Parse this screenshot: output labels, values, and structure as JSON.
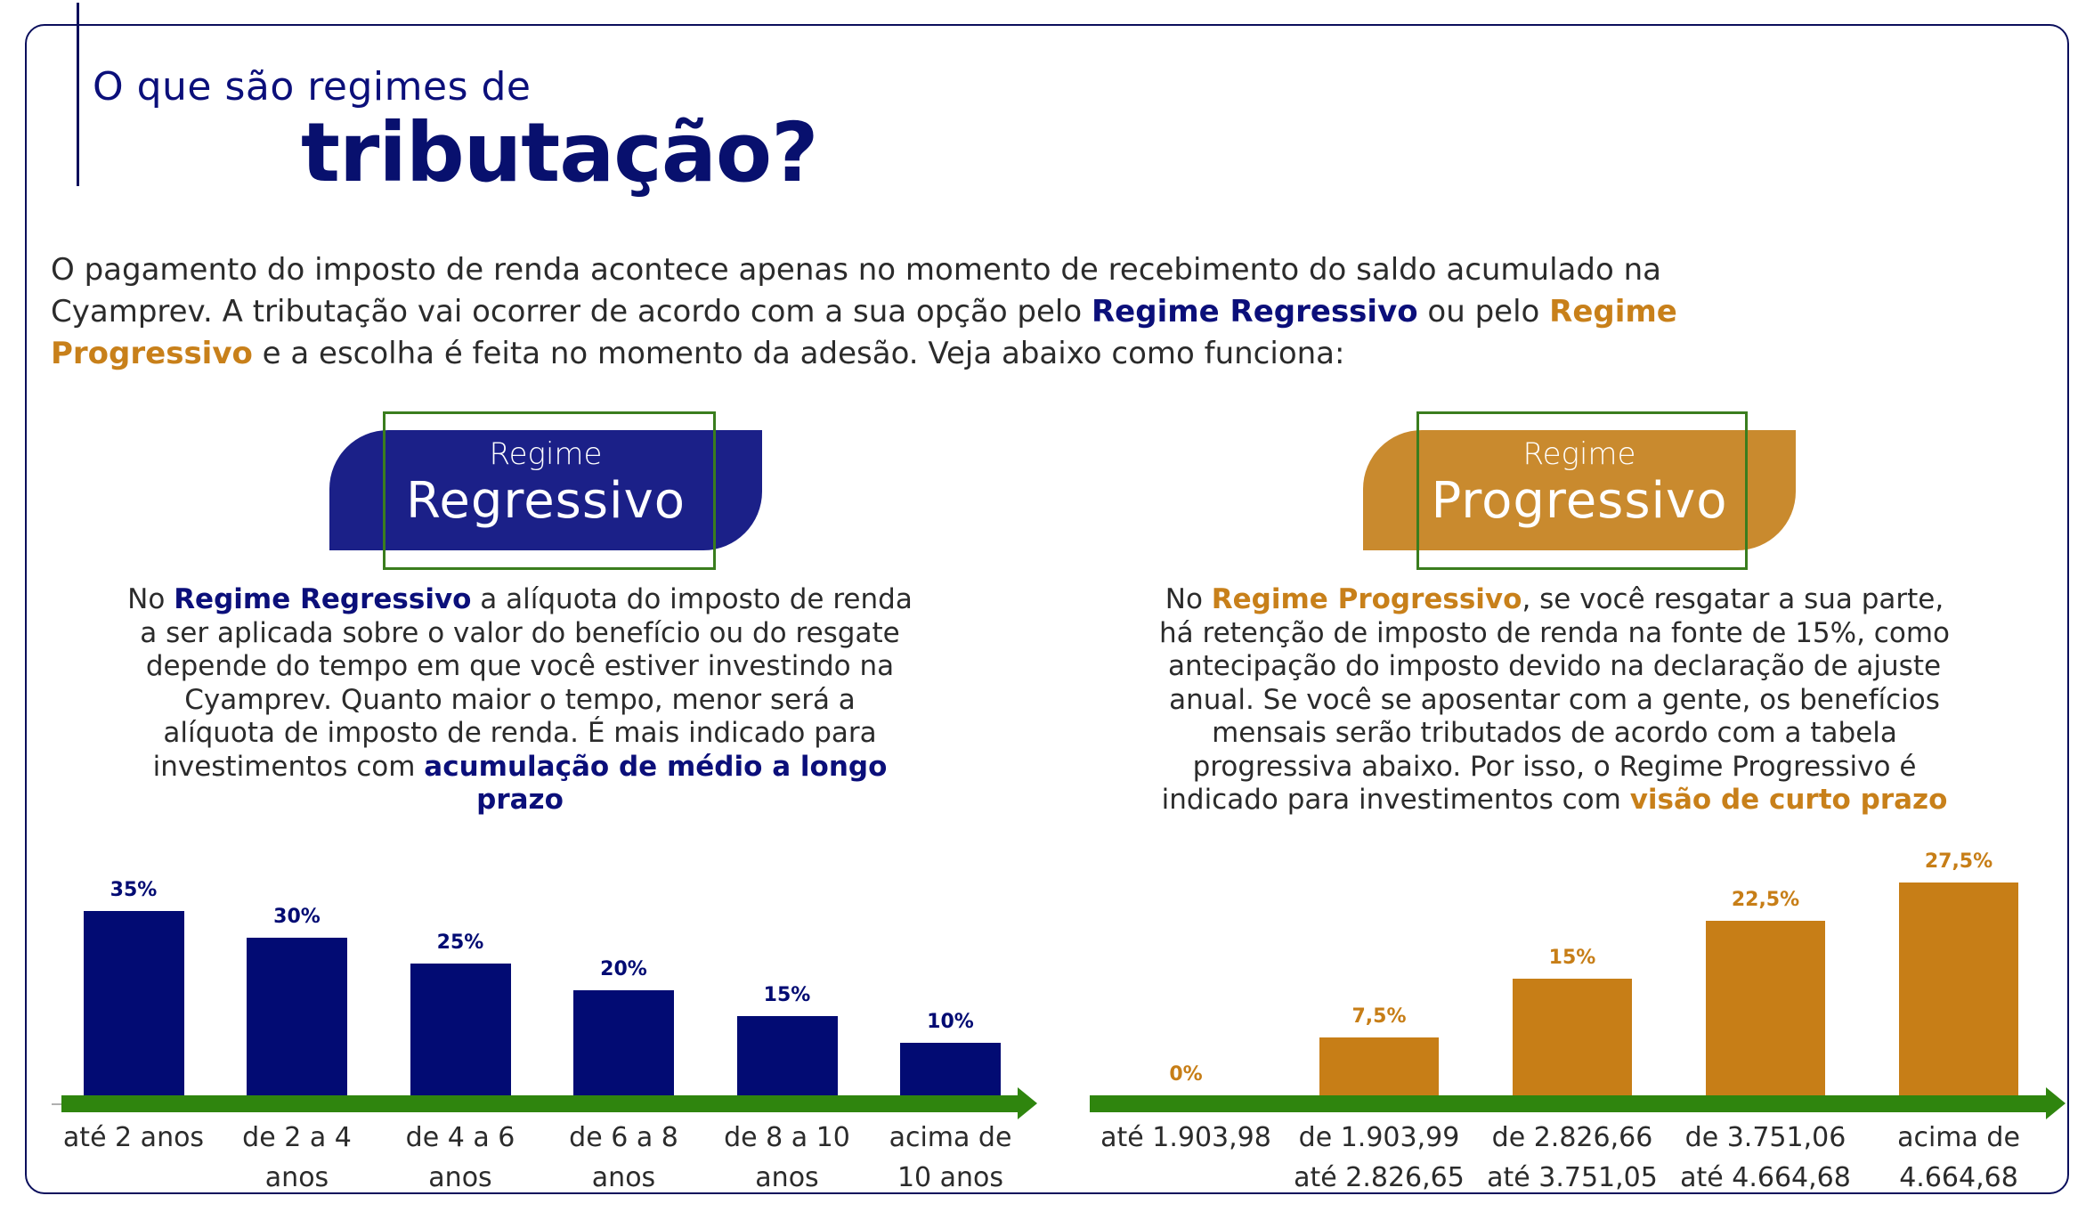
{
  "header": {
    "title_line1": "O que são regimes de",
    "title_line2": "tributação?"
  },
  "intro": {
    "line1": "O pagamento do imposto de renda acontece apenas no momento de recebimento do saldo acumulado na",
    "line2_pre": "Cyamprev. A tributação vai ocorrer de acordo com a sua opção pelo ",
    "line2_bold1": "Regime Regressivo",
    "line2_mid": " ou pelo ",
    "line2_bold2": "Regime",
    "line3_bold": "Progressivo",
    "line3_post": " e a escolha é feita no momento da adesão. Veja abaixo como funciona:"
  },
  "colors": {
    "navy": "#0b0f7a",
    "badge_blue": "#1b2088",
    "gold": "#c8801a",
    "badge_gold": "#c98a2e",
    "axis_green": "#2f850e"
  },
  "regressivo": {
    "badge_small": "Regime",
    "badge_big": "Regressivo",
    "text": {
      "l1_pre": "No ",
      "l1_bold": "Regime Regressivo",
      "l1_post": " a alíquota do imposto de renda",
      "l2": "a ser aplicada sobre o valor do benefício ou do resgate",
      "l3": "depende do tempo em que você estiver investindo na",
      "l4": "Cyamprev. Quanto maior o tempo, menor será a",
      "l5": "alíquota de imposto de renda. É mais indicado para",
      "l6_pre": "investimentos com ",
      "l6_bold": "acumulação de médio a longo",
      "l7_bold": "prazo"
    }
  },
  "progressivo": {
    "badge_small": "Regime",
    "badge_big": "Progressivo",
    "text": {
      "l1_pre": "No ",
      "l1_bold": "Regime Progressivo",
      "l1_post": ", se você resgatar a sua parte,",
      "l2": "há retenção de imposto de renda na fonte de 15%, como",
      "l3": "antecipação do imposto devido na declaração de ajuste",
      "l4": "anual. Se você se aposentar com a gente, os benefícios",
      "l5": "mensais serão tributados de acordo com a tabela",
      "l6": "progressiva abaixo. Por isso, o Regime Progressivo é",
      "l7_pre": "indicado para investimentos com ",
      "l7_bold": "visão de curto prazo"
    }
  },
  "chart_data": [
    {
      "type": "bar",
      "title": "",
      "xlabel": "",
      "ylabel": "",
      "ylim": [
        0,
        35
      ],
      "grid": false,
      "categories": [
        [
          "até 2 anos"
        ],
        [
          "de 2 a 4",
          "anos"
        ],
        [
          "de 4 a 6",
          "anos"
        ],
        [
          "de 6 a 8",
          "anos"
        ],
        [
          "de 8 a 10",
          "anos"
        ],
        [
          "acima de",
          "10 anos"
        ]
      ],
      "values": [
        35,
        30,
        25,
        20,
        15,
        10
      ],
      "value_labels": [
        "35%",
        "30%",
        "25%",
        "20%",
        "15%",
        "10%"
      ],
      "color": "#020b73"
    },
    {
      "type": "bar",
      "title": "",
      "xlabel": "",
      "ylabel": "",
      "ylim": [
        0,
        27.5
      ],
      "grid": false,
      "categories": [
        [
          "até 1.903,98"
        ],
        [
          "de 1.903,99",
          "até 2.826,65"
        ],
        [
          "de 2.826,66",
          "até 3.751,05"
        ],
        [
          "de 3.751,06",
          "até 4.664,68"
        ],
        [
          "acima de",
          "4.664,68"
        ]
      ],
      "values": [
        0,
        7.5,
        15,
        22.5,
        27.5
      ],
      "value_labels": [
        "0%",
        "7,5%",
        "15%",
        "22,5%",
        "27,5%"
      ],
      "color": "#c77e17"
    }
  ]
}
